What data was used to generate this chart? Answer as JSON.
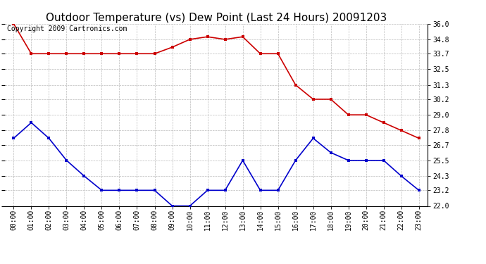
{
  "title": "Outdoor Temperature (vs) Dew Point (Last 24 Hours) 20091203",
  "copyright_text": "Copyright 2009 Cartronics.com",
  "x_labels": [
    "00:00",
    "01:00",
    "02:00",
    "03:00",
    "04:00",
    "05:00",
    "06:00",
    "07:00",
    "08:00",
    "09:00",
    "10:00",
    "11:00",
    "12:00",
    "13:00",
    "14:00",
    "15:00",
    "16:00",
    "17:00",
    "18:00",
    "19:00",
    "20:00",
    "21:00",
    "22:00",
    "23:00"
  ],
  "temp_data": [
    36.0,
    33.7,
    33.7,
    33.7,
    33.7,
    33.7,
    33.7,
    33.7,
    33.7,
    34.2,
    34.8,
    35.0,
    34.8,
    35.0,
    33.7,
    33.7,
    31.3,
    30.2,
    30.2,
    29.0,
    29.0,
    28.4,
    27.8,
    27.2
  ],
  "dew_data": [
    27.2,
    28.4,
    27.2,
    25.5,
    24.3,
    23.2,
    23.2,
    23.2,
    23.2,
    22.0,
    22.0,
    23.2,
    23.2,
    25.5,
    23.2,
    23.2,
    25.5,
    27.2,
    26.1,
    25.5,
    25.5,
    25.5,
    24.3,
    23.2
  ],
  "ylim": [
    22.0,
    36.0
  ],
  "yticks": [
    22.0,
    23.2,
    24.3,
    25.5,
    26.7,
    27.8,
    29.0,
    30.2,
    31.3,
    32.5,
    33.7,
    34.8,
    36.0
  ],
  "ytick_labels": [
    "22.0",
    "23.2",
    "24.3",
    "25.5",
    "26.7",
    "27.8",
    "29.0",
    "30.2",
    "31.3",
    "32.5",
    "33.7",
    "34.8",
    "36.0"
  ],
  "temp_color": "#cc0000",
  "dew_color": "#0000cc",
  "grid_color": "#bbbbbb",
  "bg_color": "#ffffff",
  "title_fontsize": 11,
  "copyright_fontsize": 7,
  "tick_fontsize": 7,
  "marker_size": 3
}
